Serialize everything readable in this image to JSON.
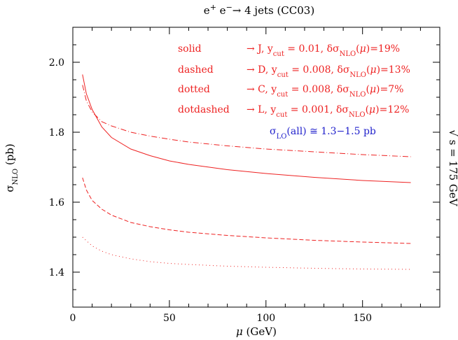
{
  "chart_data": {
    "type": "line",
    "title": "e⁺ e⁻→  4 jets (CC03)",
    "xlabel": "μ (GeV)",
    "ylabel": "σNLO (pb)",
    "right_label": "√ s = 175 GeV",
    "xlim": [
      0,
      190
    ],
    "ylim": [
      1.3,
      2.1
    ],
    "xticks": [
      0,
      50,
      100,
      150
    ],
    "yticks": [
      1.4,
      1.6,
      1.8,
      2.0
    ],
    "grid": false,
    "line_color": "#ee2222",
    "legend": [
      {
        "style": "solid",
        "text": "solid      → J, ycut = 0.01,   δσNLO(μ)=19%"
      },
      {
        "style": "dashed",
        "text": "dashed     → D, ycut = 0.008,  δσNLO(μ)=13%"
      },
      {
        "style": "dotted",
        "text": "dotted     → C, ycut = 0.008,  δσNLO(μ)=7%"
      },
      {
        "style": "dotdashed",
        "text": "dotdashed → L, ycut = 0.001,  δσNLO(μ)=12%"
      }
    ],
    "annotation": {
      "text": "σLO(all) ≅ 1.3−1.5 pb",
      "color": "#2222cc"
    },
    "series": [
      {
        "style": "solid",
        "x": [
          5,
          7,
          10,
          15,
          20,
          30,
          40,
          50,
          60,
          80,
          100,
          125,
          150,
          175
        ],
        "y": [
          1.965,
          1.91,
          1.865,
          1.815,
          1.785,
          1.752,
          1.733,
          1.718,
          1.708,
          1.693,
          1.682,
          1.671,
          1.662,
          1.656
        ]
      },
      {
        "style": "dashed",
        "x": [
          5,
          7,
          10,
          15,
          20,
          30,
          40,
          50,
          60,
          80,
          100,
          125,
          150,
          175
        ],
        "y": [
          1.67,
          1.635,
          1.605,
          1.58,
          1.563,
          1.542,
          1.53,
          1.521,
          1.514,
          1.505,
          1.498,
          1.491,
          1.486,
          1.482
        ]
      },
      {
        "style": "dotted",
        "x": [
          5,
          10,
          15,
          20,
          30,
          40,
          50,
          60,
          80,
          100,
          125,
          150,
          175
        ],
        "y": [
          1.5,
          1.475,
          1.46,
          1.45,
          1.438,
          1.43,
          1.425,
          1.422,
          1.417,
          1.414,
          1.411,
          1.409,
          1.408
        ]
      },
      {
        "style": "dotdashed",
        "x": [
          5,
          7,
          10,
          15,
          20,
          30,
          40,
          50,
          60,
          80,
          100,
          125,
          150,
          175
        ],
        "y": [
          1.935,
          1.89,
          1.858,
          1.83,
          1.818,
          1.8,
          1.789,
          1.78,
          1.772,
          1.761,
          1.752,
          1.744,
          1.736,
          1.73
        ]
      }
    ]
  }
}
